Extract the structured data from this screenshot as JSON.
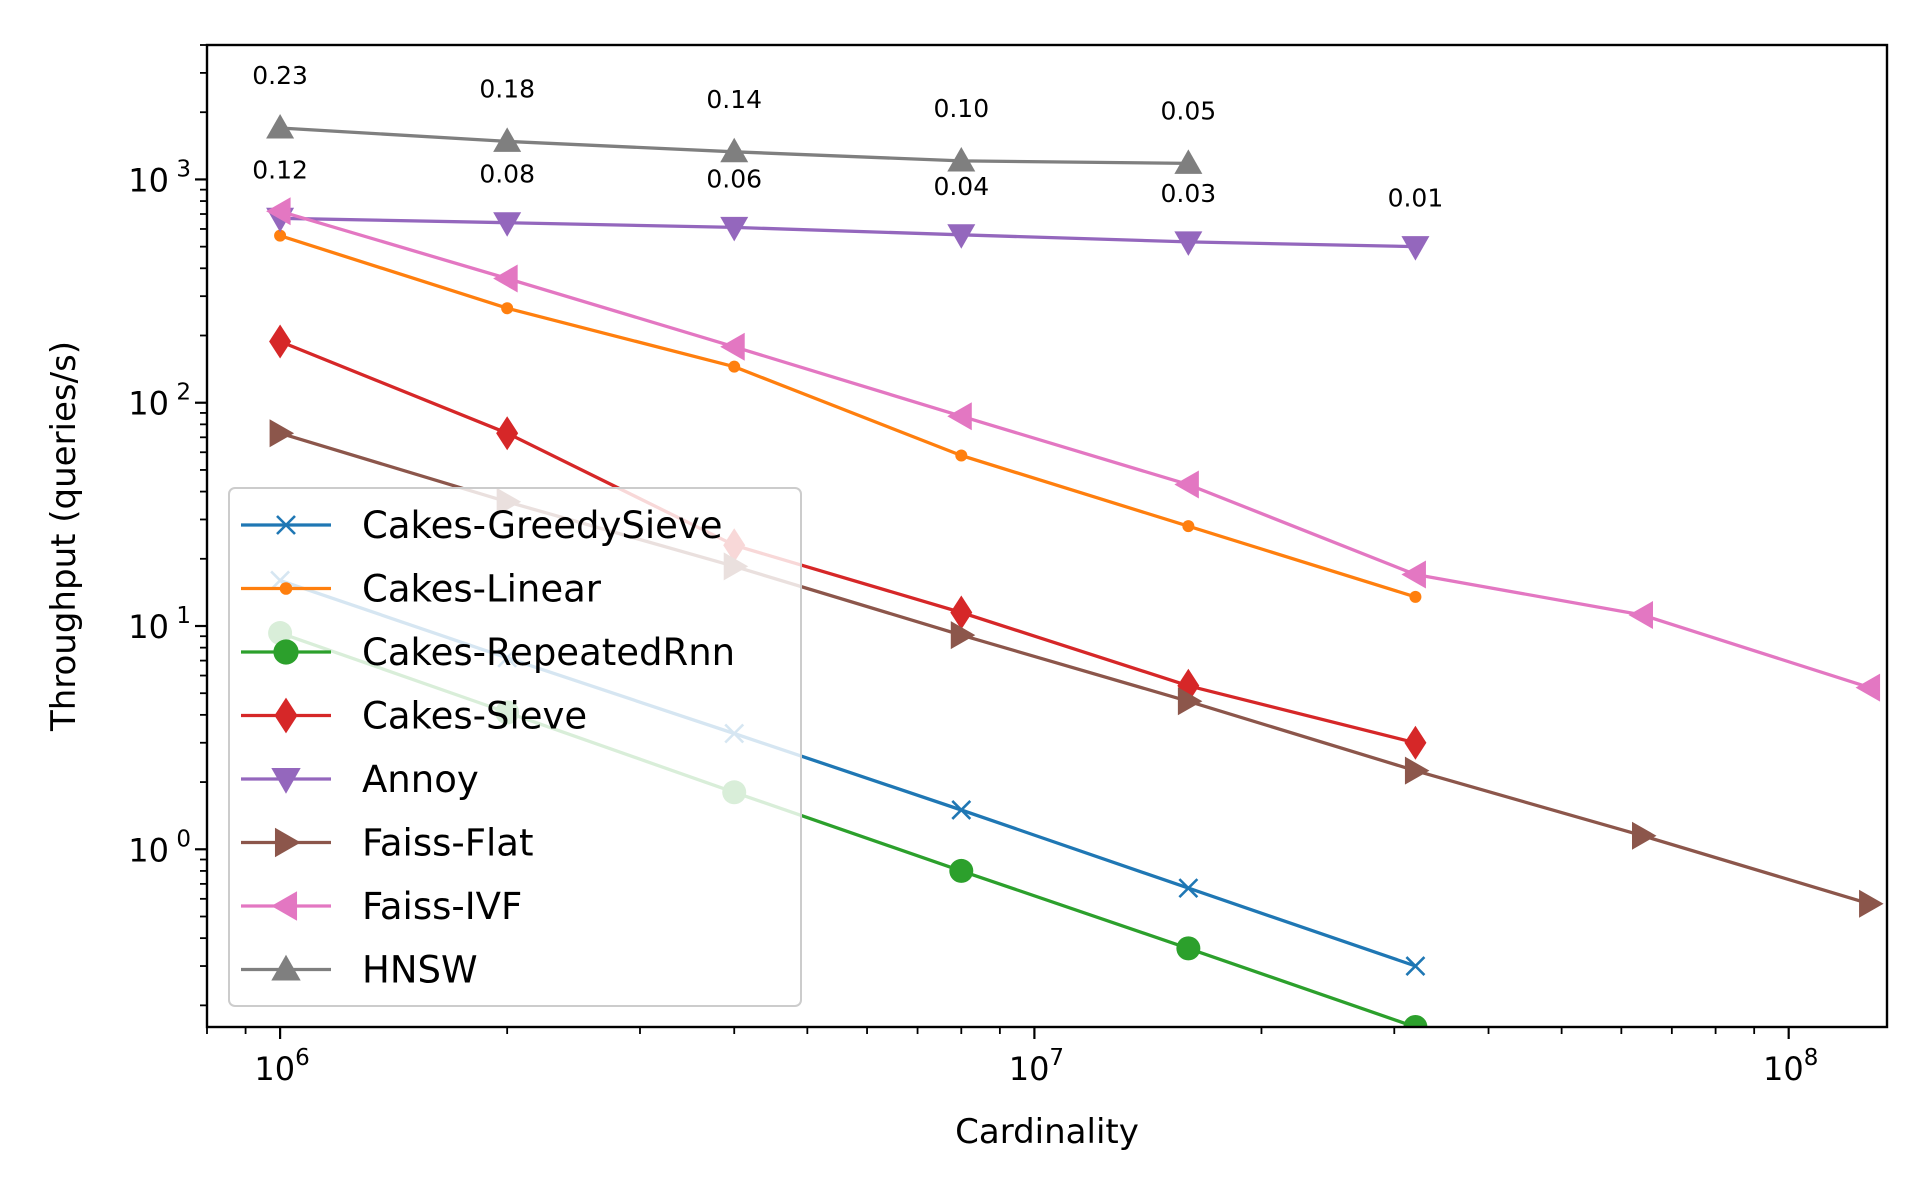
{
  "chart_data": {
    "type": "line",
    "xlabel": "Cardinality",
    "ylabel": "Throughput (queries/s)",
    "xscale": "log",
    "yscale": "log",
    "xlim": [
      800000,
      135000000
    ],
    "ylim": [
      0.16,
      4000
    ],
    "x_ticks": [
      {
        "value": 1000000,
        "base": "10",
        "exp": "6"
      },
      {
        "value": 10000000,
        "base": "10",
        "exp": "7"
      },
      {
        "value": 100000000,
        "base": "10",
        "exp": "8"
      }
    ],
    "y_ticks": [
      {
        "value": 1,
        "base": "10",
        "exp": "0"
      },
      {
        "value": 10,
        "base": "10",
        "exp": "1"
      },
      {
        "value": 100,
        "base": "10",
        "exp": "2"
      },
      {
        "value": 1000,
        "base": "10",
        "exp": "3"
      }
    ],
    "grid": false,
    "legend_position": "lower-left",
    "series": [
      {
        "name": "Cakes-GreedySieve",
        "color": "#1f77b4",
        "marker": "x",
        "x": [
          1000000,
          2000000,
          4000000,
          8000000,
          16000000,
          32000000
        ],
        "y": [
          16,
          7.2,
          3.3,
          1.5,
          0.67,
          0.3
        ]
      },
      {
        "name": "Cakes-Linear",
        "color": "#ff7f0e",
        "marker": "point",
        "x": [
          1000000,
          2000000,
          4000000,
          8000000,
          16000000,
          32000000
        ],
        "y": [
          560,
          265,
          145,
          58,
          28,
          13.5
        ]
      },
      {
        "name": "Cakes-RepeatedRnn",
        "color": "#2ca02c",
        "marker": "circle",
        "x": [
          1000000,
          2000000,
          4000000,
          8000000,
          16000000,
          32000000
        ],
        "y": [
          9.3,
          4.1,
          1.8,
          0.8,
          0.36,
          0.16
        ]
      },
      {
        "name": "Cakes-Sieve",
        "color": "#d62728",
        "marker": "diamond",
        "x": [
          1000000,
          2000000,
          4000000,
          8000000,
          16000000,
          32000000
        ],
        "y": [
          188,
          73,
          23,
          11.5,
          5.4,
          3.0
        ]
      },
      {
        "name": "Annoy",
        "color": "#9467bd",
        "marker": "triangle-down",
        "x": [
          1000000,
          2000000,
          4000000,
          8000000,
          16000000,
          32000000
        ],
        "y": [
          670,
          640,
          610,
          565,
          525,
          500
        ]
      },
      {
        "name": "Faiss-Flat",
        "color": "#8c564b",
        "marker": "triangle-right",
        "x": [
          1000000,
          2000000,
          4000000,
          8000000,
          16000000,
          32000000,
          64000000,
          128000000
        ],
        "y": [
          73,
          36,
          18.5,
          9.1,
          4.6,
          2.25,
          1.15,
          0.57
        ]
      },
      {
        "name": "Faiss-IVF",
        "color": "#e377c2",
        "marker": "triangle-left",
        "x": [
          1000000,
          2000000,
          4000000,
          8000000,
          16000000,
          32000000,
          64000000,
          128000000
        ],
        "y": [
          720,
          360,
          178,
          87,
          43,
          17,
          11.2,
          5.3
        ]
      },
      {
        "name": "HNSW",
        "color": "#7f7f7f",
        "marker": "triangle-up",
        "x": [
          1000000,
          2000000,
          4000000,
          8000000,
          16000000
        ],
        "y": [
          1700,
          1480,
          1330,
          1210,
          1180
        ]
      }
    ],
    "annotations": [
      {
        "text": "0.23",
        "x": 1000000,
        "y": 1700,
        "series": "HNSW"
      },
      {
        "text": "0.18",
        "x": 2000000,
        "y": 1480,
        "series": "HNSW"
      },
      {
        "text": "0.14",
        "x": 4000000,
        "y": 1330,
        "series": "HNSW"
      },
      {
        "text": "0.10",
        "x": 8000000,
        "y": 1210,
        "series": "HNSW"
      },
      {
        "text": "0.05",
        "x": 16000000,
        "y": 1180,
        "series": "HNSW"
      },
      {
        "text": "0.12",
        "x": 1000000,
        "y": 670,
        "series": "Annoy"
      },
      {
        "text": "0.08",
        "x": 2000000,
        "y": 640,
        "series": "Annoy"
      },
      {
        "text": "0.06",
        "x": 4000000,
        "y": 610,
        "series": "Annoy"
      },
      {
        "text": "0.04",
        "x": 8000000,
        "y": 565,
        "series": "Annoy"
      },
      {
        "text": "0.03",
        "x": 16000000,
        "y": 525,
        "series": "Annoy"
      },
      {
        "text": "0.01",
        "x": 32000000,
        "y": 500,
        "series": "Annoy"
      }
    ]
  }
}
